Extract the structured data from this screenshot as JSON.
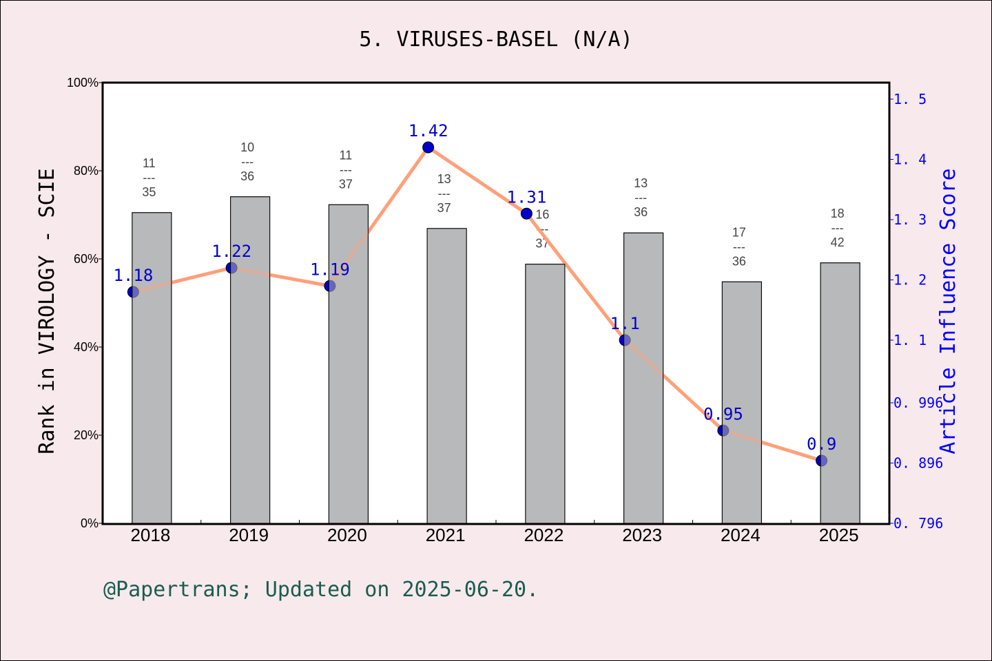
{
  "chart_data": {
    "type": "bar+line",
    "title": "5. VIRUSES-BASEL (N/A)",
    "categories": [
      "2018",
      "2019",
      "2020",
      "2021",
      "2022",
      "2023",
      "2024",
      "2025"
    ],
    "ylabel_left": "Rank in VIROLOGY - SCIE",
    "ylabel_right": "Article Influence Score",
    "left_ticks": [
      "0%",
      "20%",
      "40%",
      "60%",
      "80%",
      "100%"
    ],
    "left_ylim": [
      0,
      100
    ],
    "right_ticks": [
      "0.796",
      "0.896",
      "0.996",
      "1.1",
      "1.2",
      "1.3",
      "1.4",
      "1.5"
    ],
    "right_ylim": [
      0.796,
      1.5
    ],
    "bars": {
      "values_percent": [
        70.5,
        74.1,
        72.3,
        66.9,
        58.8,
        65.9,
        54.8,
        59.1
      ],
      "ranks": [
        "11",
        "10",
        "11",
        "13",
        "16",
        "13",
        "17",
        "18"
      ],
      "totals": [
        "35",
        "36",
        "37",
        "37",
        "37",
        "36",
        "36",
        "42"
      ],
      "separator": "---",
      "color": "#b8b9ba"
    },
    "line": {
      "values": [
        1.18,
        1.22,
        1.19,
        1.42,
        1.31,
        1.1,
        0.95,
        0.9
      ],
      "labels": [
        "1.18",
        "1.22",
        "1.19",
        "1.42",
        "1.31",
        "1.1",
        "0.95",
        "0.9"
      ],
      "line_color": "#ffa07a",
      "marker_color": "#0000cd"
    },
    "grid": false
  },
  "footer": "@Papertrans; Updated on 2025-06-20."
}
